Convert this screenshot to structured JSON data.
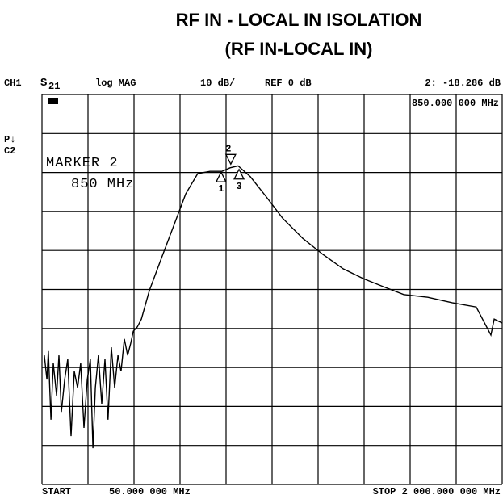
{
  "chart_data": {
    "type": "line",
    "title": "RF IN - LOCAL IN ISOLATION",
    "subtitle": "(RF IN-LOCAL IN)",
    "channel": "CH1",
    "parameter": "S",
    "parameter_sub": "21",
    "format": "log MAG",
    "scale": "10 dB/",
    "reference": "REF 0 dB",
    "marker_readout": "2: -18.286 dB",
    "marker_frequency": "850.000 000 MHz",
    "side_labels": [
      "P↓",
      "C2"
    ],
    "marker_box": [
      "MARKER 2",
      "850 MHz"
    ],
    "start_label": "START",
    "start": "50.000 000 MHz",
    "stop": "STOP 2 000.000 000 MHz",
    "color": "#000000",
    "grid": true,
    "xlim": [
      50,
      2000
    ],
    "ylim": [
      -100,
      0
    ],
    "xticks": [
      50,
      245,
      440,
      635,
      830,
      1025,
      1220,
      1415,
      1610,
      1805,
      2000
    ],
    "yticks": [
      -100,
      -90,
      -80,
      -70,
      -60,
      -50,
      -40,
      -30,
      -20,
      -10,
      0
    ],
    "x": [
      60,
      71,
      77,
      88,
      98,
      112,
      122,
      132,
      146,
      159,
      173,
      187,
      201,
      214,
      228,
      242,
      255,
      266,
      276,
      289,
      303,
      317,
      330,
      344,
      358,
      372,
      385,
      399,
      413,
      426,
      437,
      454,
      471,
      505,
      556,
      608,
      659,
      710,
      762,
      813,
      847,
      881,
      933,
      1001,
      1069,
      1155,
      1240,
      1326,
      1411,
      1497,
      1583,
      1685,
      1788,
      1890,
      1952,
      1966,
      2000
    ],
    "series": [
      {
        "name": "S21",
        "color": "#000000",
        "values": [
          -66.9,
          -73.1,
          -65.8,
          -83.4,
          -68.9,
          -77.2,
          -66.9,
          -81.4,
          -73.1,
          -67.9,
          -87.6,
          -71.0,
          -75.2,
          -68.9,
          -85.5,
          -73.1,
          -67.9,
          -90.7,
          -75.2,
          -66.9,
          -79.3,
          -67.9,
          -83.4,
          -64.8,
          -75.2,
          -66.9,
          -71.0,
          -62.7,
          -66.9,
          -63.8,
          -60.7,
          -59.6,
          -57.6,
          -50.3,
          -42.0,
          -33.7,
          -25.5,
          -20.3,
          -19.7,
          -19.7,
          -18.8,
          -18.3,
          -21.1,
          -26.3,
          -31.7,
          -36.9,
          -41.0,
          -44.7,
          -47.2,
          -49.3,
          -51.3,
          -52.0,
          -53.4,
          -54.5,
          -61.7,
          -57.6,
          -58.6
        ]
      }
    ],
    "markers": [
      {
        "label": "1",
        "x": 809,
        "y": -19.7
      },
      {
        "label": "2",
        "x": 850,
        "y": -18.286
      },
      {
        "label": "3",
        "x": 885,
        "y": -19.0
      }
    ]
  }
}
